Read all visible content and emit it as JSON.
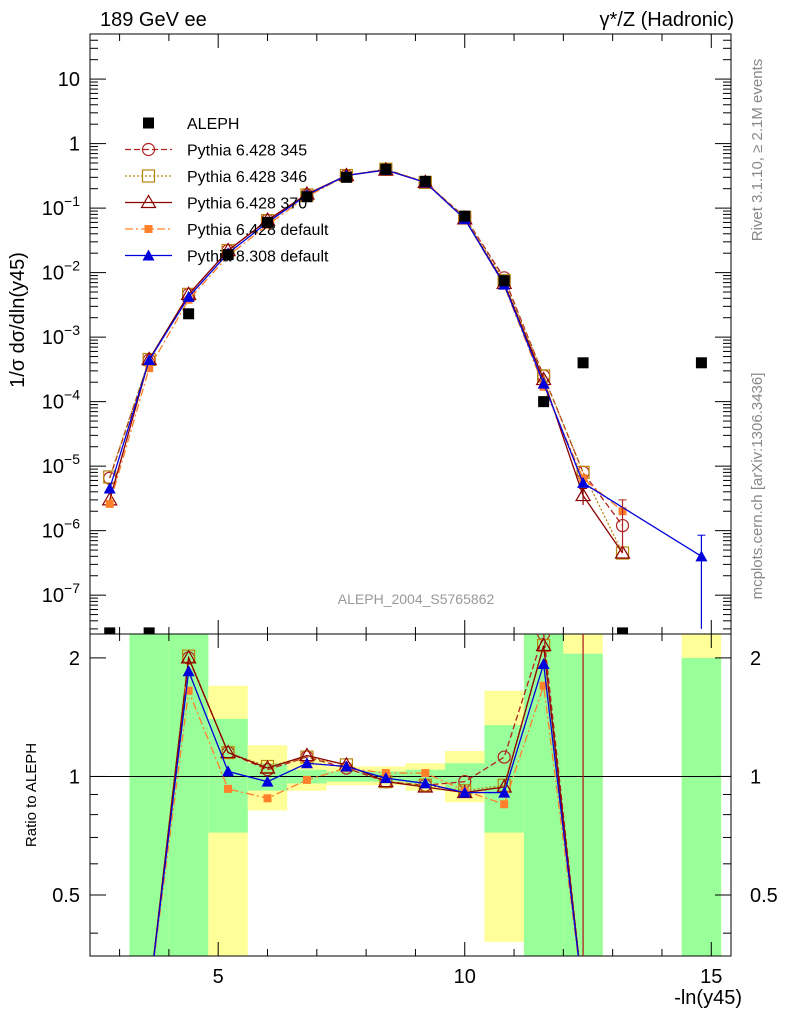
{
  "header": {
    "left": "189 GeV ee",
    "right": "γ*/Z (Hadronic)"
  },
  "side_labels": {
    "rivet": "Rivet 3.1.10, ≥ 2.1M events",
    "mcplots": "mcplots.cern.ch [arXiv:1306.3436]"
  },
  "analysis_label": "ALEPH_2004_S5765862",
  "chart_data": {
    "type": "scatter",
    "top_panel": {
      "ylabel": "1/σ dσ/dln(y45)",
      "yscale": "log",
      "ylim": [
        2.5e-08,
        50
      ],
      "y_tick_labels": [
        "10^-7",
        "10^-6",
        "10^-5",
        "10^-4",
        "10^-3",
        "10^-2",
        "10^-1",
        "1",
        "10"
      ]
    },
    "ratio_panel": {
      "ylabel": "Ratio to ALEPH",
      "ylim": [
        0.35,
        2.3
      ],
      "y_tick_labels": [
        "0.5",
        "1",
        "2"
      ]
    },
    "xlabel": "-ln(y45)",
    "xlim": [
      2.4,
      15.4
    ],
    "x_tick_labels": [
      "5",
      "10",
      "15"
    ],
    "legend_position": "upper-left",
    "data": {
      "name": "ALEPH",
      "color": "#000000",
      "x": [
        2.8,
        3.6,
        4.4,
        5.2,
        6.0,
        6.8,
        7.6,
        8.4,
        9.2,
        10.0,
        10.8,
        11.6,
        12.4,
        13.2,
        14.8
      ],
      "y": [
        2.6e-08,
        2.6e-08,
        0.0023,
        0.019,
        0.06,
        0.15,
        0.3,
        0.4,
        0.26,
        0.075,
        0.0075,
        0.0001,
        0.0004,
        2.6e-08,
        0.0004
      ]
    },
    "series": [
      {
        "name": "Pythia 6.428 345",
        "color": "#b22222",
        "x": [
          2.8,
          3.6,
          4.4,
          5.2,
          6.0,
          6.8,
          7.6,
          8.4,
          9.2,
          10.0,
          10.8,
          11.6,
          12.4,
          13.2
        ],
        "y": [
          6.5e-06,
          0.00044,
          0.0046,
          0.022,
          0.065,
          0.16,
          0.32,
          0.4,
          0.25,
          0.073,
          0.0083,
          0.00025,
          8e-06,
          1.2e-06
        ],
        "ratio": [
          null,
          null,
          2.0,
          1.15,
          1.04,
          1.12,
          1.05,
          0.97,
          0.95,
          0.97,
          1.12,
          2.3,
          null,
          null
        ],
        "ratio_x": [
          2.8,
          3.6,
          4.4,
          5.2,
          6.0,
          6.8,
          7.6,
          8.4,
          9.2,
          10.0,
          10.8,
          11.6,
          12.4,
          13.2
        ]
      },
      {
        "name": "Pythia 6.428 346",
        "color": "#b8860b",
        "x": [
          2.8,
          3.6,
          4.4,
          5.2,
          6.0,
          6.8,
          7.6,
          8.4,
          9.2,
          10.0,
          10.8,
          11.6,
          12.4,
          13.2
        ],
        "y": [
          6.8e-06,
          0.00045,
          0.0046,
          0.022,
          0.064,
          0.16,
          0.32,
          0.4,
          0.25,
          0.072,
          0.0075,
          0.00025,
          8e-06,
          4.5e-07
        ],
        "ratio": [
          null,
          null,
          2.02,
          1.15,
          1.06,
          1.12,
          1.07,
          0.97,
          0.95,
          0.92,
          0.95,
          2.15,
          null,
          null
        ],
        "ratio_x": [
          2.8,
          3.6,
          4.4,
          5.2,
          6.0,
          6.8,
          7.6,
          8.4,
          9.2,
          10.0,
          10.8,
          11.6,
          12.4,
          13.2
        ]
      },
      {
        "name": "Pythia 6.428 370",
        "color": "#8b0000",
        "x": [
          2.8,
          3.6,
          4.4,
          5.2,
          6.0,
          6.8,
          7.6,
          8.4,
          9.2,
          10.0,
          10.8,
          11.6,
          12.4,
          13.2
        ],
        "y": [
          3e-06,
          0.00045,
          0.0046,
          0.022,
          0.065,
          0.165,
          0.32,
          0.39,
          0.25,
          0.068,
          0.0068,
          0.00022,
          3.5e-06,
          4.5e-07
        ],
        "ratio": [
          null,
          null,
          2.0,
          1.15,
          1.05,
          1.13,
          1.07,
          0.97,
          0.94,
          0.91,
          0.94,
          2.15,
          null,
          null
        ],
        "ratio_x": [
          2.8,
          3.6,
          4.4,
          5.2,
          6.0,
          6.8,
          7.6,
          8.4,
          9.2,
          10.0,
          10.8,
          11.6,
          12.4,
          13.2
        ]
      },
      {
        "name": "Pythia 6.428 default",
        "color": "#ff7f2a",
        "x": [
          2.8,
          3.6,
          4.4,
          5.2,
          6.0,
          6.8,
          7.6,
          8.4,
          9.2,
          10.0,
          10.8,
          11.6,
          12.4,
          13.2
        ],
        "y": [
          2.6e-06,
          0.00033,
          0.0038,
          0.018,
          0.055,
          0.15,
          0.32,
          0.39,
          0.26,
          0.068,
          0.0063,
          0.00017,
          6.5e-06,
          2e-06
        ],
        "ratio": [
          null,
          null,
          1.65,
          0.93,
          0.88,
          0.98,
          1.05,
          1.02,
          1.02,
          0.92,
          0.85,
          1.7,
          null,
          null
        ],
        "ratio_x": [
          2.8,
          3.6,
          4.4,
          5.2,
          6.0,
          6.8,
          7.6,
          8.4,
          9.2,
          10.0,
          10.8,
          11.6,
          12.4,
          13.2
        ]
      },
      {
        "name": "Pythia 8.308 default",
        "color": "#0000dd",
        "x": [
          2.8,
          3.6,
          4.4,
          5.2,
          6.0,
          6.8,
          7.6,
          8.4,
          9.2,
          10.0,
          10.8,
          11.6,
          12.4,
          14.8
        ],
        "y": [
          4.5e-06,
          0.00044,
          0.0042,
          0.02,
          0.06,
          0.16,
          0.32,
          0.39,
          0.25,
          0.068,
          0.0065,
          0.00019,
          5.5e-06,
          4e-07
        ],
        "ratio": [
          null,
          null,
          1.85,
          1.03,
          0.97,
          1.08,
          1.06,
          0.99,
          0.96,
          0.91,
          0.91,
          1.93,
          null,
          null
        ],
        "ratio_x": [
          2.8,
          3.6,
          4.4,
          5.2,
          6.0,
          6.8,
          7.6,
          8.4,
          9.2,
          10.0,
          10.8,
          11.6,
          12.4,
          14.8
        ]
      }
    ],
    "bands": {
      "green_color": "#99ff99",
      "yellow_color": "#ffff99",
      "bins": [
        {
          "x0": 3.2,
          "x1": 4.0,
          "green": [
            0.0,
            2.3
          ],
          "yellow": [
            0.0,
            2.3
          ]
        },
        {
          "x0": 4.0,
          "x1": 4.8,
          "green": [
            0.0,
            2.3
          ],
          "yellow": [
            0.0,
            2.3
          ]
        },
        {
          "x0": 4.8,
          "x1": 5.6,
          "green": [
            0.72,
            1.4
          ],
          "yellow": [
            0.0,
            1.7
          ]
        },
        {
          "x0": 5.6,
          "x1": 6.4,
          "green": [
            0.92,
            1.08
          ],
          "yellow": [
            0.82,
            1.2
          ]
        },
        {
          "x0": 6.4,
          "x1": 7.2,
          "green": [
            0.96,
            1.04
          ],
          "yellow": [
            0.92,
            1.1
          ]
        },
        {
          "x0": 7.2,
          "x1": 8.0,
          "green": [
            0.97,
            1.03
          ],
          "yellow": [
            0.95,
            1.06
          ]
        },
        {
          "x0": 8.0,
          "x1": 8.8,
          "green": [
            0.97,
            1.03
          ],
          "yellow": [
            0.95,
            1.06
          ]
        },
        {
          "x0": 8.8,
          "x1": 9.6,
          "green": [
            0.96,
            1.04
          ],
          "yellow": [
            0.92,
            1.08
          ]
        },
        {
          "x0": 9.6,
          "x1": 10.4,
          "green": [
            0.92,
            1.08
          ],
          "yellow": [
            0.86,
            1.16
          ]
        },
        {
          "x0": 10.4,
          "x1": 11.2,
          "green": [
            0.72,
            1.35
          ],
          "yellow": [
            0.38,
            1.65
          ]
        },
        {
          "x0": 11.2,
          "x1": 12.0,
          "green": [
            0.0,
            2.3
          ],
          "yellow": [
            0.0,
            2.3
          ]
        },
        {
          "x0": 12.0,
          "x1": 12.8,
          "green": [
            0.0,
            2.05
          ],
          "yellow": [
            0.0,
            2.3
          ]
        },
        {
          "x0": 14.4,
          "x1": 15.2,
          "green": [
            0.0,
            2.0
          ],
          "yellow": [
            0.0,
            2.3
          ]
        }
      ]
    }
  }
}
